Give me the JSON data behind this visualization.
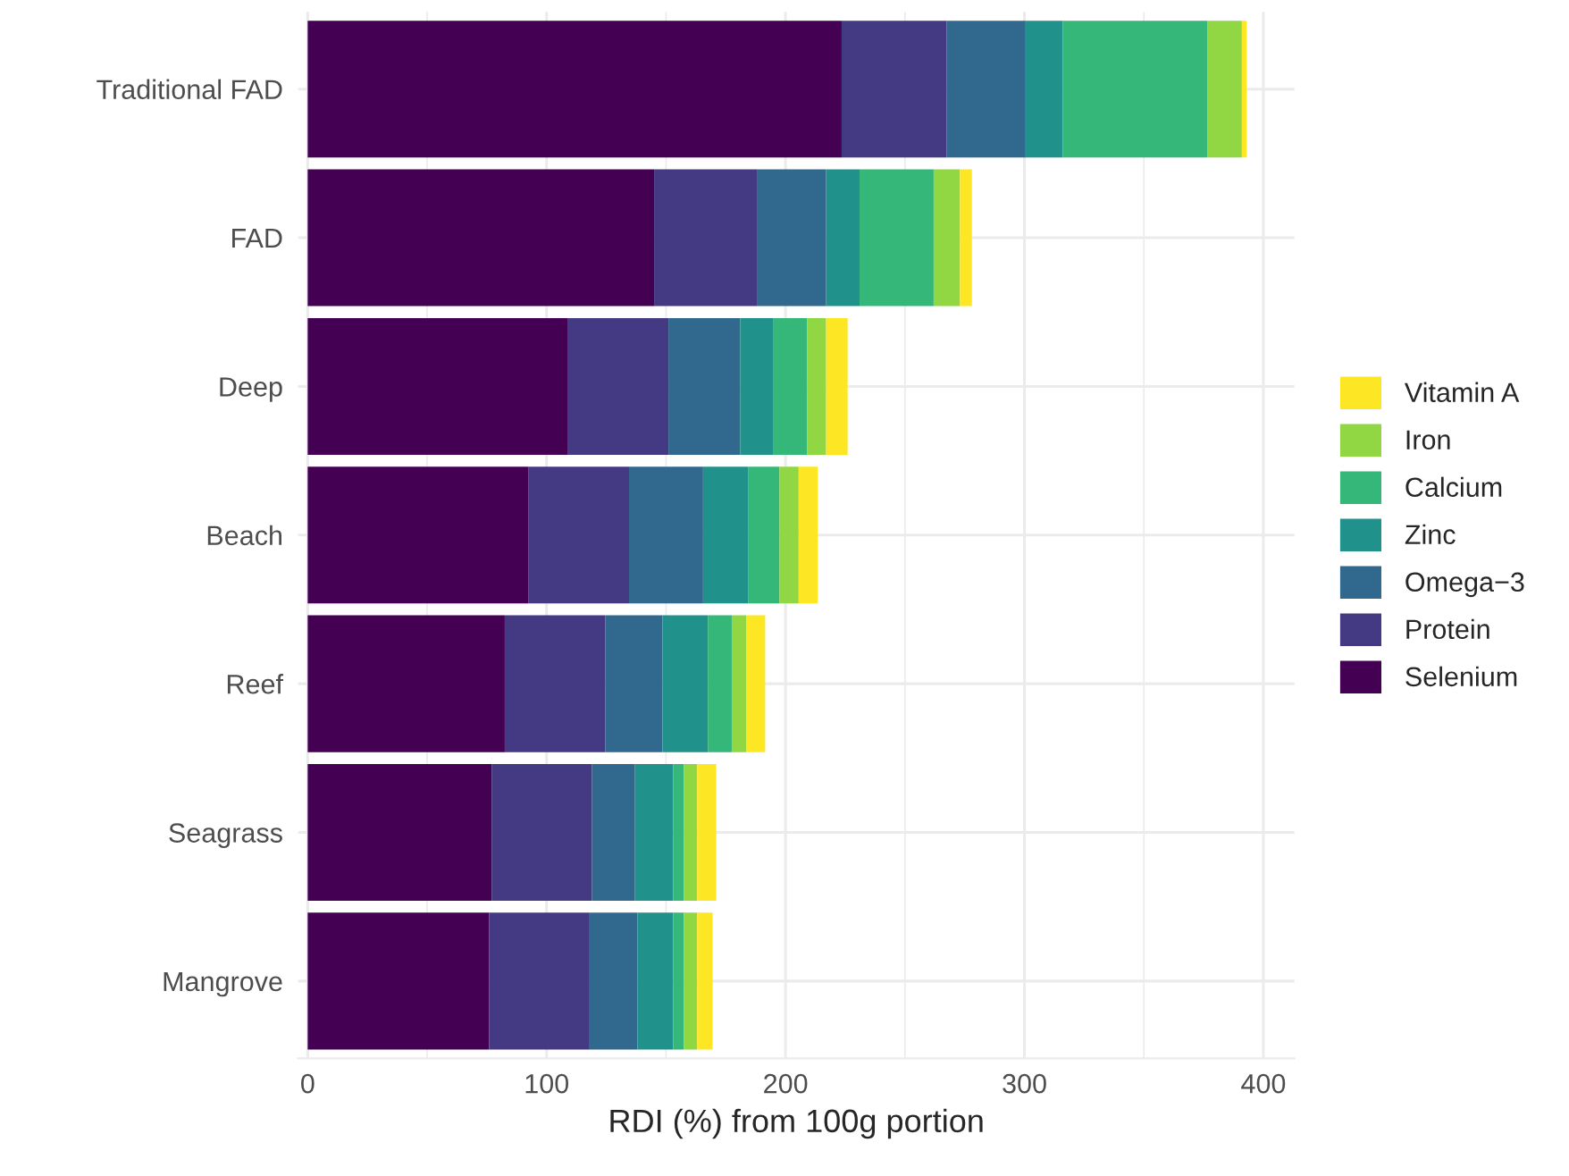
{
  "chart_data": {
    "type": "bar",
    "orientation": "horizontal",
    "stacked": true,
    "xlabel": "RDI (%) from 100g portion",
    "categories": [
      "Traditional FAD",
      "FAD",
      "Deep",
      "Beach",
      "Reef",
      "Seagrass",
      "Mangrove"
    ],
    "series": [
      {
        "name": "Selenium",
        "color": "#440154",
        "values": [
          223.5,
          145,
          109,
          92.5,
          82.5,
          77,
          76
        ]
      },
      {
        "name": "Protein",
        "color": "#443983",
        "values": [
          44,
          43,
          42,
          42,
          42,
          42,
          42
        ]
      },
      {
        "name": "Omega−3",
        "color": "#31688e",
        "values": [
          33,
          29,
          30,
          31,
          24,
          18,
          20
        ]
      },
      {
        "name": "Zinc",
        "color": "#21918c",
        "values": [
          15.5,
          14,
          14,
          19,
          19,
          16,
          15
        ]
      },
      {
        "name": "Calcium",
        "color": "#35b779",
        "values": [
          60.5,
          31,
          14,
          13,
          10,
          4.5,
          4.5
        ]
      },
      {
        "name": "Iron",
        "color": "#90d743",
        "values": [
          14.5,
          11,
          8,
          8,
          6,
          5.5,
          5.5
        ]
      },
      {
        "name": "Vitamin A",
        "color": "#fde725",
        "values": [
          2,
          5,
          9,
          8,
          8,
          8,
          6.5
        ]
      }
    ],
    "xlim": [
      -4,
      413
    ],
    "xticks": [
      0,
      100,
      200,
      300,
      400
    ],
    "grid": true,
    "legend": "right"
  }
}
